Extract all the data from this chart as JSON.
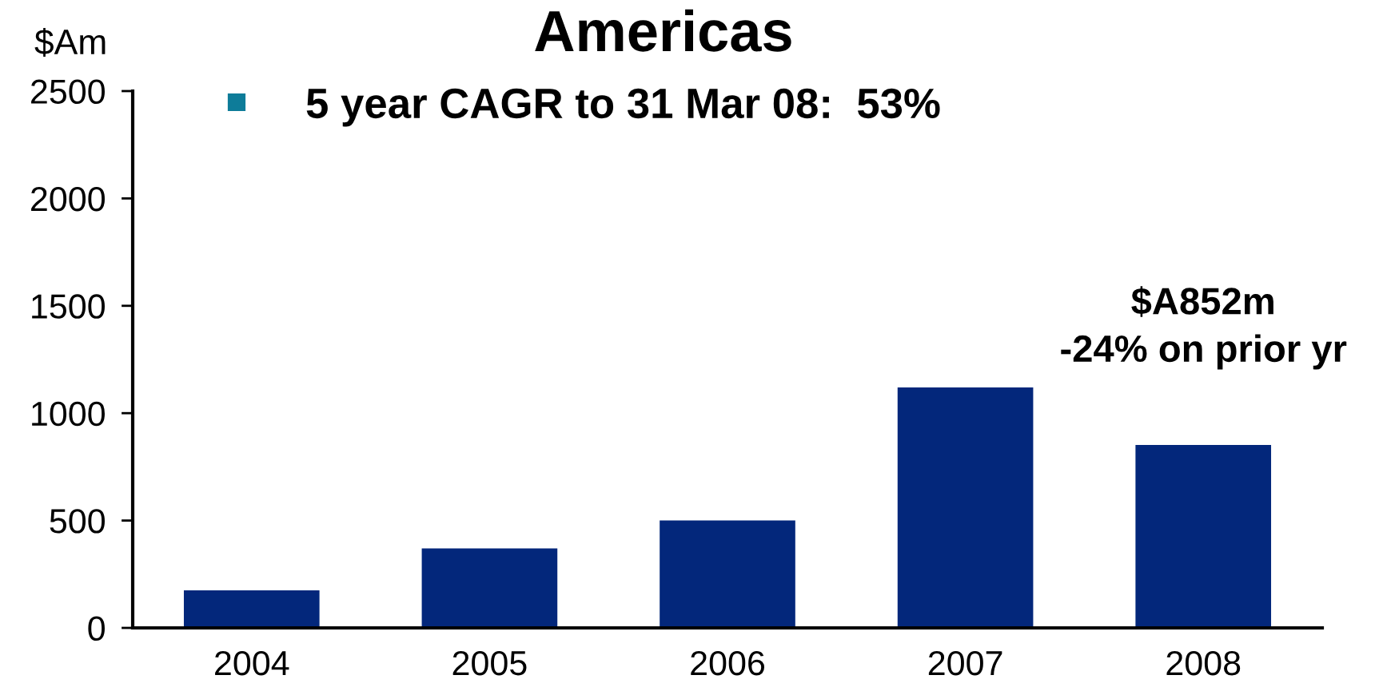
{
  "chart_data": {
    "type": "bar",
    "title": "Americas",
    "subtitle": "5 year CAGR to 31 Mar 08:  53%",
    "ylabel": "$Am",
    "categories": [
      "2004",
      "2005",
      "2006",
      "2007",
      "2008"
    ],
    "values": [
      175,
      370,
      500,
      1120,
      852
    ],
    "color": "#03277b",
    "ylim": [
      0,
      2500
    ],
    "yticks": [
      0,
      500,
      1000,
      1500,
      2000,
      2500
    ],
    "annotations": [
      {
        "text": "$A852m\n-24% on prior yr",
        "x": "2008",
        "y": 852
      }
    ]
  }
}
